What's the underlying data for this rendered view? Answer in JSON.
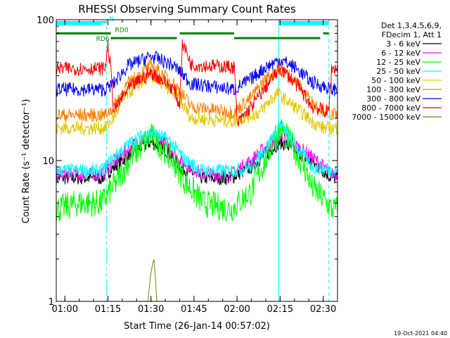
{
  "chart_data": {
    "type": "line",
    "title": "RHESSI Observing Summary Count Rates",
    "xlabel": "Start Time (26-Jan-14 00:57:02)",
    "ylabel": "Count Rate (s⁻¹ detector⁻¹)",
    "x_unit": "minutes",
    "x_range": [
      "00:57",
      "02:35"
    ],
    "y_scale": "log",
    "ylim": [
      1,
      100
    ],
    "x_ticks": [
      "01:00",
      "01:15",
      "01:30",
      "01:45",
      "02:00",
      "02:15",
      "02:30"
    ],
    "y_ticks": [
      "1",
      "10",
      "100"
    ],
    "legend_header": [
      "Det 1,3,4,5,6,9,",
      "FDecim 1, Att 1"
    ],
    "legend_position": "right",
    "series": [
      {
        "name": "3 - 6 keV",
        "color": "#000000",
        "x": [
          "00:57",
          "01:05",
          "01:13",
          "01:20",
          "01:25",
          "01:30",
          "01:35",
          "01:40",
          "01:48",
          "01:58",
          "02:05",
          "02:10",
          "02:15",
          "02:20",
          "02:25",
          "02:33"
        ],
        "y": [
          7.5,
          7.5,
          7.5,
          10,
          12,
          13.5,
          12,
          9,
          7.5,
          7.5,
          9,
          11,
          13.5,
          12,
          10,
          7.5
        ]
      },
      {
        "name": "6 - 12 keV",
        "color": "#ff00ff",
        "x": [
          "00:57",
          "01:05",
          "01:13",
          "01:20",
          "01:25",
          "01:30",
          "01:35",
          "01:40",
          "01:48",
          "01:58",
          "02:05",
          "02:10",
          "02:15",
          "02:20",
          "02:25",
          "02:33"
        ],
        "y": [
          8,
          8,
          8,
          11,
          13.5,
          15,
          13.5,
          10,
          8,
          8,
          10,
          12.5,
          15,
          13,
          11,
          8
        ]
      },
      {
        "name": "12 - 25 keV",
        "color": "#00ff00",
        "x": [
          "00:57",
          "01:05",
          "01:13",
          "01:18",
          "01:24",
          "01:30",
          "01:36",
          "01:42",
          "01:48",
          "01:58",
          "02:05",
          "02:10",
          "02:15",
          "02:20",
          "02:26",
          "02:33"
        ],
        "y": [
          4.5,
          5,
          5,
          7,
          11,
          15,
          11,
          7,
          5,
          4.5,
          6,
          10,
          17,
          12,
          6.5,
          4.5
        ]
      },
      {
        "name": "25 - 50 keV",
        "color": "#00ffff",
        "x": [
          "00:57",
          "01:05",
          "01:13",
          "01:18",
          "01:24",
          "01:30",
          "01:36",
          "01:42",
          "01:48",
          "01:58",
          "02:05",
          "02:10",
          "02:15",
          "02:20",
          "02:26",
          "02:33"
        ],
        "y": [
          8.5,
          8.5,
          8.5,
          11,
          14,
          16,
          14,
          10,
          8.5,
          8.5,
          9,
          12,
          18,
          13,
          9,
          8.5
        ]
      },
      {
        "name": "50 - 100 keV",
        "color": "#e0c800",
        "x": [
          "00:57",
          "01:14",
          "01:17",
          "01:22",
          "01:30",
          "01:38",
          "01:44",
          "01:59",
          "02:08",
          "02:14",
          "02:15",
          "02:20",
          "02:26",
          "02:30",
          "02:33"
        ],
        "y": [
          17,
          17,
          20,
          30,
          40,
          30,
          20,
          19,
          22,
          30,
          29,
          24,
          19,
          17,
          17
        ]
      },
      {
        "name": "100 - 300 keV",
        "color": "#ff8000",
        "x": [
          "00:57",
          "01:14",
          "01:17",
          "01:22",
          "01:30",
          "01:38",
          "01:44",
          "01:59",
          "02:05",
          "02:10",
          "02:15",
          "02:20",
          "02:26",
          "02:33"
        ],
        "y": [
          21,
          21,
          24,
          35,
          47,
          35,
          24,
          22,
          28,
          38,
          45,
          37,
          26,
          21
        ]
      },
      {
        "name": "300 - 800 keV",
        "color": "#0000ff",
        "x": [
          "00:57",
          "01:14",
          "01:17",
          "01:22",
          "01:30",
          "01:38",
          "01:44",
          "01:59",
          "02:05",
          "02:10",
          "02:15",
          "02:20",
          "02:26",
          "02:33"
        ],
        "y": [
          32,
          32,
          35,
          47,
          55,
          47,
          35,
          32,
          38,
          46,
          52,
          46,
          36,
          32
        ]
      },
      {
        "name": "800 - 7000 keV",
        "color": "#ff0000",
        "x": [
          "00:57",
          "01:14",
          "01:15",
          "01:17",
          "01:22",
          "01:30",
          "01:38",
          "01:40",
          "01:41",
          "01:44",
          "01:59",
          "02:00",
          "02:05",
          "02:10",
          "02:15",
          "02:20",
          "02:26",
          "02:32",
          "02:33"
        ],
        "y": [
          45,
          45,
          65,
          22,
          32,
          42,
          32,
          24,
          68,
          48,
          46,
          18,
          24,
          33,
          45,
          36,
          24,
          22,
          45
        ]
      },
      {
        "name": "7000 - 15000 keV",
        "color": "#808000",
        "x": [
          "00:57",
          "01:29",
          "01:30",
          "01:31",
          "01:32",
          "02:33"
        ],
        "y": [
          1,
          1,
          1.6,
          2,
          1,
          1
        ]
      }
    ],
    "annotations": {
      "vertical_lines_solid": [
        "00:57",
        "02:14:30"
      ],
      "vertical_lines_dashed": [
        "01:14:30",
        "02:32"
      ],
      "bar_segments": [
        {
          "label": "N",
          "color": "#00ffff",
          "y": 96,
          "segments": [
            [
              "00:57",
              "01:14:30"
            ],
            [
              "02:14:30",
              "02:32"
            ]
          ]
        },
        {
          "label": "",
          "color": "#00ffff",
          "y": 93,
          "segments": [
            [
              "00:57",
              "01:13"
            ],
            [
              "02:14:30",
              "02:32"
            ]
          ]
        },
        {
          "label": "RD0",
          "color": "#008000",
          "y": 80,
          "segments": [
            [
              "00:57",
              "01:16"
            ],
            [
              "01:40",
              "01:59"
            ],
            [
              "02:30",
              "02:32"
            ]
          ]
        },
        {
          "label": "RD6",
          "color": "#008000",
          "y": 74,
          "segments": [
            [
              "01:16",
              "01:39"
            ],
            [
              "01:59",
              "02:29"
            ]
          ]
        }
      ]
    },
    "footer_timestamp": "19-Oct-2021 04:40"
  }
}
